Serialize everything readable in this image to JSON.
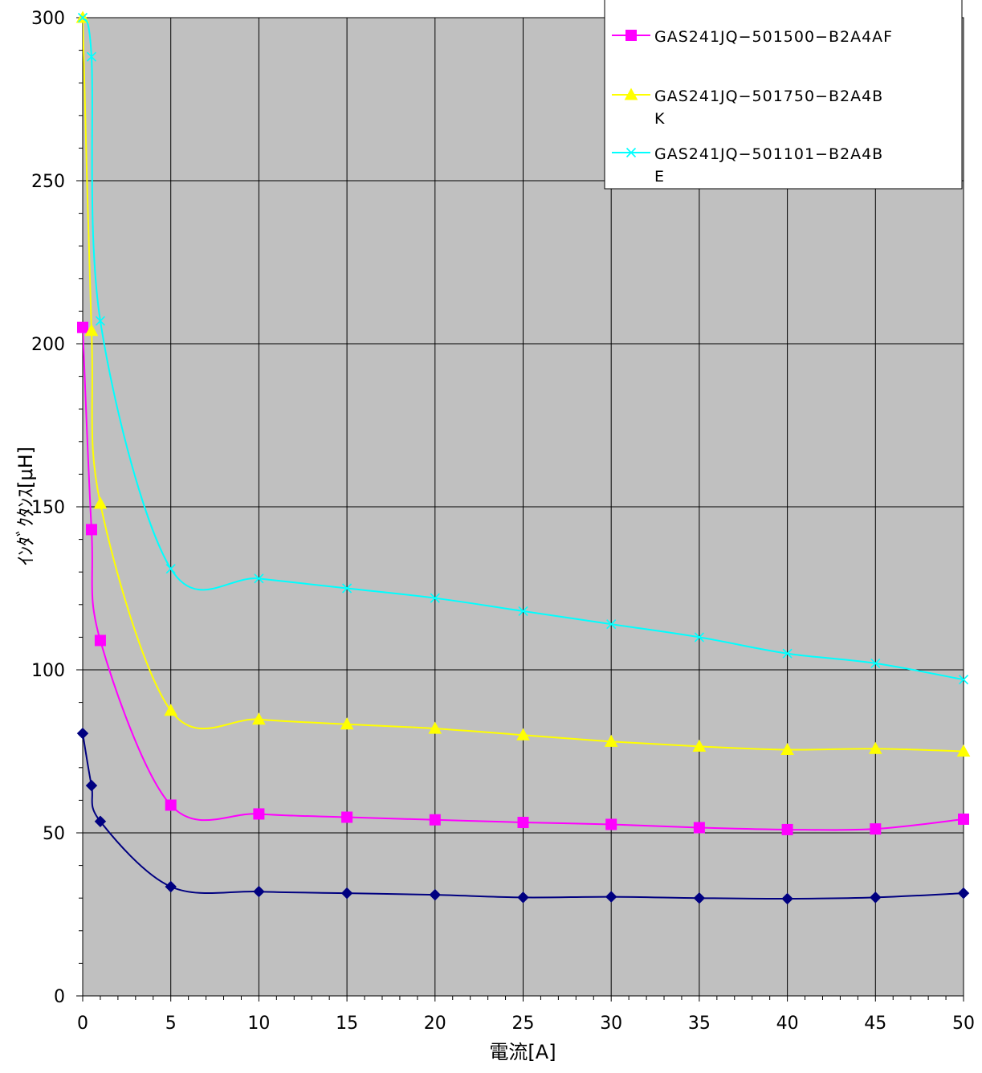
{
  "chart_data": {
    "type": "line",
    "title": "",
    "xlabel": "電流[A]",
    "ylabel": "ｲﾝﾀﾞｸﾀﾝｽ[μH]",
    "xlim": [
      0,
      50
    ],
    "ylim": [
      0,
      300
    ],
    "x_ticks": [
      0,
      5,
      10,
      15,
      20,
      25,
      30,
      35,
      40,
      45,
      50
    ],
    "y_ticks": [
      0,
      50,
      100,
      150,
      200,
      250,
      300
    ],
    "grid": true,
    "plot_background": "#c0c0c0",
    "legend_position": "top-right",
    "x": [
      0,
      0.5,
      1,
      5,
      10,
      15,
      20,
      25,
      30,
      35,
      40,
      45,
      50
    ],
    "series": [
      {
        "color": "#000080",
        "marker": "diamond",
        "values": [
          80.5,
          64.5,
          53.5,
          33.5,
          32,
          31.5,
          31,
          30.2,
          30.4,
          30,
          29.8,
          30.2,
          31.5
        ]
      },
      {
        "name": "GAS241JQ−501500−B2A4AF",
        "legend_lines": [
          "GAS241JQ−501500−B2A4AF"
        ],
        "color": "#ff00ff",
        "marker": "square",
        "values": [
          205,
          143,
          109,
          58.5,
          55.8,
          54.8,
          54,
          53.2,
          52.6,
          51.6,
          51,
          51.2,
          54.2
        ]
      },
      {
        "name": "GAS241JQ−501750−B2A4BK",
        "legend_lines": [
          "GAS241JQ−501750−B2A4B",
          "K"
        ],
        "color": "#ffff00",
        "marker": "triangle",
        "values": [
          300,
          204,
          151,
          87.5,
          84.8,
          83.3,
          82,
          80,
          78,
          76.5,
          75.5,
          75.8,
          75
        ]
      },
      {
        "name": "GAS241JQ−501101−B2A4BE",
        "legend_lines": [
          "GAS241JQ−501101−B2A4B",
          "E"
        ],
        "color": "#00ffff",
        "marker": "x",
        "values": [
          300,
          288,
          207,
          131,
          128,
          125,
          122,
          118,
          114,
          110,
          105,
          102,
          97
        ]
      }
    ]
  }
}
